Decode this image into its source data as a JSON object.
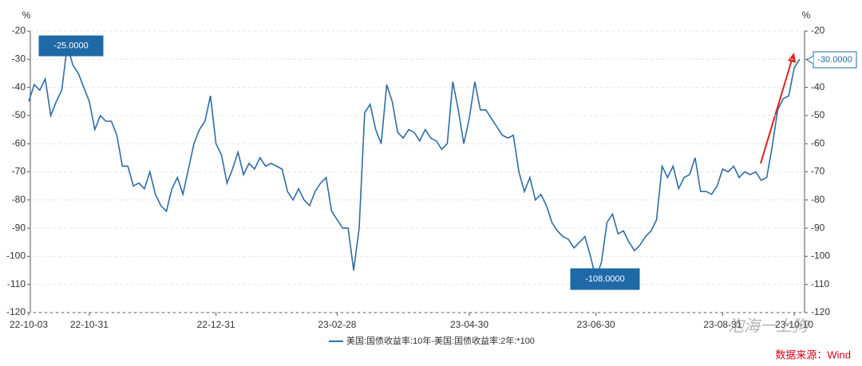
{
  "chart_data": {
    "type": "line",
    "y_unit": "%",
    "y2_unit": "%",
    "categories": [
      "22-10-03",
      null,
      null,
      null,
      null,
      null,
      null,
      null,
      null,
      null,
      null,
      "22-10-31",
      null,
      null,
      null,
      null,
      null,
      null,
      null,
      null,
      null,
      null,
      null,
      null,
      null,
      null,
      null,
      null,
      null,
      null,
      null,
      null,
      null,
      null,
      "22-12-31",
      null,
      null,
      null,
      null,
      null,
      null,
      null,
      null,
      null,
      null,
      null,
      null,
      null,
      null,
      null,
      null,
      null,
      null,
      null,
      null,
      null,
      "23-02-28",
      null,
      null,
      null,
      null,
      null,
      null,
      null,
      null,
      null,
      null,
      null,
      null,
      null,
      null,
      null,
      null,
      null,
      null,
      null,
      null,
      null,
      null,
      null,
      "23-04-30",
      null,
      null,
      null,
      null,
      null,
      null,
      null,
      null,
      null,
      null,
      null,
      null,
      null,
      null,
      null,
      null,
      null,
      null,
      null,
      null,
      null,
      null,
      "23-06-30",
      null,
      null,
      null,
      null,
      null,
      null,
      null,
      null,
      null,
      null,
      null,
      null,
      null,
      null,
      null,
      null,
      null,
      null,
      null,
      null,
      null,
      null,
      "23-08-31",
      null,
      null,
      null,
      null,
      null,
      null,
      null,
      null,
      null,
      null,
      null,
      null,
      "23-10-10",
      null
    ],
    "series": [
      {
        "name": "美国:国债收益率:10年-美国:国债收益率:2年:*100",
        "color": "#2e6da4",
        "values": [
          -45,
          -39,
          -41,
          -37,
          -50,
          -45,
          -41,
          -25,
          -32,
          -35,
          -40,
          -45,
          -55,
          -50,
          -52,
          -52,
          -57,
          -68,
          -68,
          -75,
          -74,
          -76,
          -70,
          -78,
          -82,
          -84,
          -76,
          -72,
          -78,
          -69,
          -60,
          -55,
          -52,
          -43,
          -60,
          -64,
          -74,
          -69,
          -63,
          -71,
          -67,
          -69,
          -65,
          -68,
          -67,
          -68,
          -69,
          -77,
          -80,
          -76,
          -80,
          -82,
          -77,
          -74,
          -72,
          -84,
          -87,
          -90,
          -90,
          -105,
          -90,
          -49,
          -46,
          -55,
          -60,
          -39,
          -45,
          -56,
          -58,
          -55,
          -56,
          -59,
          -55,
          -58,
          -59,
          -62,
          -60,
          -38,
          -48,
          -60,
          -51,
          -38,
          -48,
          -48,
          -51,
          -54,
          -57,
          -58,
          -57,
          -70,
          -77,
          -72,
          -80,
          -78,
          -82,
          -88,
          -91,
          -93,
          -94,
          -97,
          -95,
          -93,
          -100,
          -108,
          -102,
          -88,
          -85,
          -92,
          -91,
          -95,
          -98,
          -96,
          -93,
          -91,
          -87,
          -68,
          -72,
          -68,
          -76,
          -72,
          -71,
          -65,
          -77,
          -77,
          -78,
          -75,
          -69,
          -70,
          -68,
          -72,
          -70,
          -71,
          -70,
          -73,
          -72,
          -61,
          -48,
          -44,
          -43,
          -33,
          -30
        ]
      }
    ],
    "annotations": [
      "-25.0000",
      "-108.0000",
      "-30.0000"
    ],
    "ylim": [
      -120,
      -20
    ],
    "yticks": [
      -20,
      -30,
      -40,
      -50,
      -60,
      -70,
      -80,
      -90,
      -100,
      -110,
      -120
    ],
    "y2lim": [
      -120,
      -20
    ],
    "y2ticks": [
      -20,
      -30,
      -40,
      -50,
      -60,
      -70,
      -80,
      -90,
      -100,
      -110,
      -120
    ],
    "grid": true,
    "source": "数据来源：Wind",
    "watermark": "泡海一上狗"
  }
}
